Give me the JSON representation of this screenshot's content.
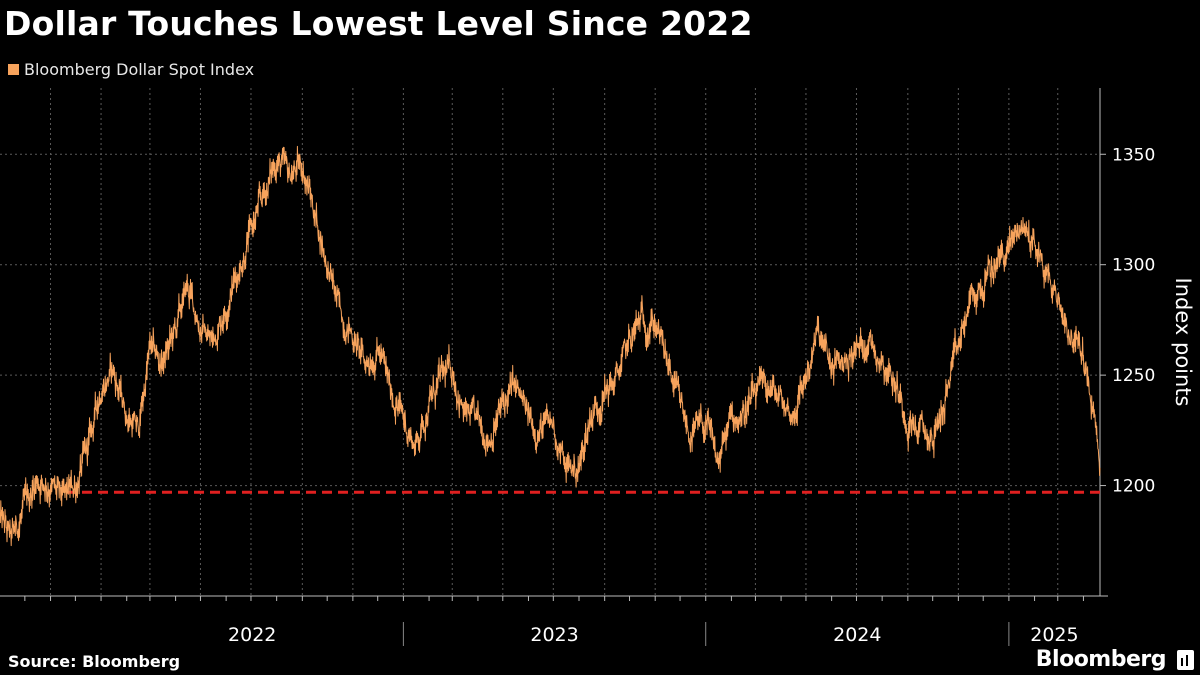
{
  "header": {
    "title": "Dollar Touches Lowest Level Since 2022"
  },
  "legend": {
    "label": "Bloomberg Dollar Spot Index",
    "color": "#f7a35c"
  },
  "footer": {
    "source": "Source: Bloomberg",
    "brand": "Bloomberg"
  },
  "chart_data": {
    "type": "line",
    "title": "Dollar Touches Lowest Level Since 2022",
    "xlabel": "",
    "ylabel": "Index points",
    "ylim": [
      1150,
      1380
    ],
    "xlim": [
      "2021-09-01",
      "2025-04-21"
    ],
    "y_ticks": [
      1200,
      1250,
      1300,
      1350
    ],
    "y_tick_labels": [
      "1200",
      "1250",
      "1300",
      "1350"
    ],
    "x_tick_labels": [
      "2022",
      "2023",
      "2024",
      "2025"
    ],
    "grid": true,
    "legend_position": "top-left",
    "y_axis_position": "right",
    "reference_line": {
      "value": 1197,
      "style": "dashed",
      "color": "#e02020"
    },
    "series": [
      {
        "name": "Bloomberg Dollar Spot Index",
        "color": "#f7a35c",
        "x": [
          "2021-09-01",
          "2021-09-15",
          "2021-10-01",
          "2021-10-15",
          "2021-11-01",
          "2021-11-15",
          "2021-12-01",
          "2021-12-15",
          "2022-01-01",
          "2022-01-15",
          "2022-02-01",
          "2022-02-15",
          "2022-03-01",
          "2022-03-15",
          "2022-04-01",
          "2022-04-15",
          "2022-05-01",
          "2022-05-15",
          "2022-06-01",
          "2022-06-15",
          "2022-07-01",
          "2022-07-15",
          "2022-08-01",
          "2022-08-15",
          "2022-09-01",
          "2022-09-15",
          "2022-10-01",
          "2022-10-15",
          "2022-11-01",
          "2022-11-15",
          "2022-12-01",
          "2022-12-15",
          "2023-01-01",
          "2023-01-15",
          "2023-02-01",
          "2023-02-15",
          "2023-03-01",
          "2023-03-15",
          "2023-04-01",
          "2023-04-15",
          "2023-05-01",
          "2023-05-15",
          "2023-06-01",
          "2023-06-15",
          "2023-07-01",
          "2023-07-15",
          "2023-08-01",
          "2023-08-15",
          "2023-09-01",
          "2023-09-15",
          "2023-10-01",
          "2023-10-15",
          "2023-11-01",
          "2023-11-15",
          "2023-12-01",
          "2023-12-15",
          "2024-01-01",
          "2024-01-15",
          "2024-02-01",
          "2024-02-15",
          "2024-03-01",
          "2024-03-15",
          "2024-04-01",
          "2024-04-15",
          "2024-05-01",
          "2024-05-15",
          "2024-06-01",
          "2024-06-15",
          "2024-07-01",
          "2024-07-15",
          "2024-08-01",
          "2024-08-15",
          "2024-09-01",
          "2024-09-15",
          "2024-10-01",
          "2024-10-15",
          "2024-11-01",
          "2024-11-15",
          "2024-12-01",
          "2024-12-15",
          "2025-01-01",
          "2025-01-15",
          "2025-02-01",
          "2025-02-15",
          "2025-03-01",
          "2025-03-15",
          "2025-04-01",
          "2025-04-15",
          "2025-04-21"
        ],
        "values": [
          1185,
          1175,
          1190,
          1203,
          1200,
          1193,
          1200,
          1215,
          1245,
          1252,
          1232,
          1225,
          1262,
          1255,
          1270,
          1290,
          1272,
          1265,
          1282,
          1297,
          1315,
          1330,
          1348,
          1340,
          1345,
          1325,
          1300,
          1280,
          1268,
          1255,
          1262,
          1245,
          1230,
          1218,
          1237,
          1248,
          1253,
          1232,
          1228,
          1222,
          1236,
          1245,
          1230,
          1225,
          1228,
          1208,
          1208,
          1232,
          1242,
          1248,
          1265,
          1275,
          1274,
          1255,
          1235,
          1222,
          1228,
          1210,
          1230,
          1233,
          1240,
          1245,
          1238,
          1232,
          1250,
          1268,
          1253,
          1256,
          1261,
          1267,
          1258,
          1248,
          1230,
          1225,
          1220,
          1238,
          1262,
          1283,
          1290,
          1300,
          1308,
          1318,
          1310,
          1295,
          1285,
          1270,
          1258,
          1225,
          1208
        ]
      }
    ]
  }
}
